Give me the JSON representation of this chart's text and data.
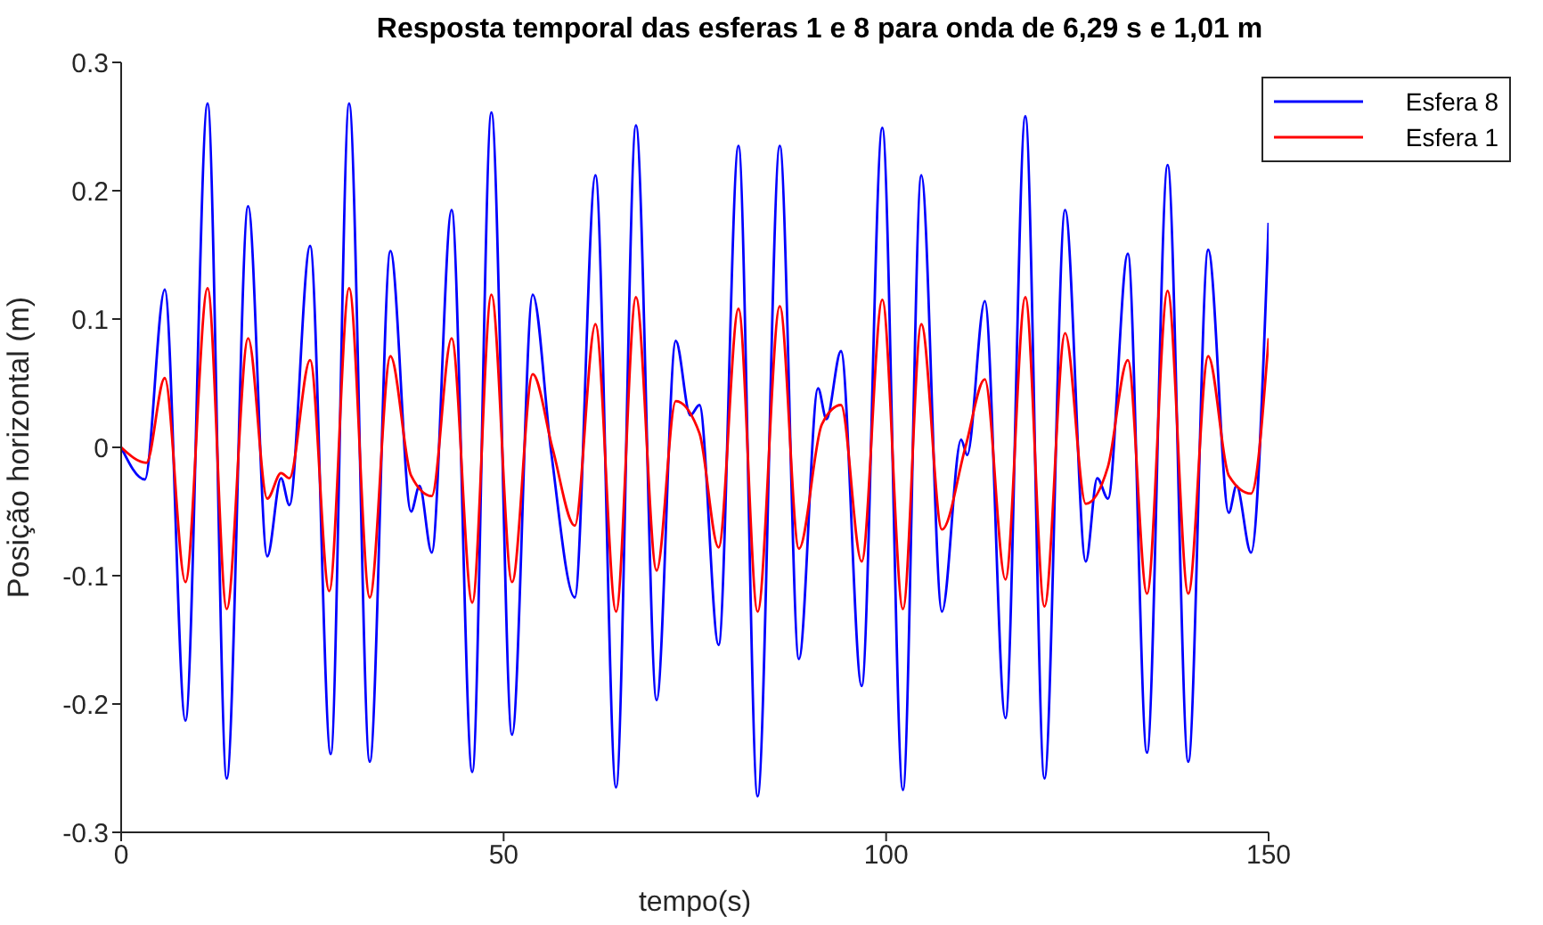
{
  "chart_data": {
    "type": "line",
    "title": "Resposta temporal das esferas 1 e 8 para onda de 6,29 s e 1,01 m",
    "xlabel": "tempo(s)",
    "ylabel": "Posição horizontal (m)",
    "xlim": [
      0,
      150
    ],
    "xticks": [
      0,
      50,
      100,
      150
    ],
    "ylim": [
      -0.3,
      0.3
    ],
    "yticks": [
      -0.3,
      -0.2,
      -0.1,
      0,
      0.1,
      0.2,
      0.3
    ],
    "grid": false,
    "legend": "top right",
    "marker": "none",
    "line_style": "solid",
    "series": [
      {
        "name": "Esfera 8",
        "color": "#0000ff",
        "x": [
          0,
          3.1,
          5.7,
          8.4,
          11.3,
          13.8,
          16.6,
          19.1,
          20.9,
          22.0,
          24.7,
          27.4,
          29.8,
          32.5,
          35.2,
          37.9,
          39.0,
          40.6,
          43.2,
          45.9,
          48.4,
          51.1,
          53.8,
          56.2,
          59.3,
          62.0,
          64.7,
          67.3,
          70.0,
          72.5,
          74.4,
          75.6,
          78.1,
          80.7,
          83.2,
          86.1,
          88.6,
          91.1,
          92.2,
          94.1,
          96.8,
          99.5,
          102.2,
          104.6,
          107.3,
          109.8,
          110.6,
          112.9,
          115.6,
          118.2,
          120.7,
          123.4,
          126.1,
          127.6,
          129.0,
          131.6,
          134.1,
          136.8,
          139.5,
          142.1,
          144.8,
          145.8,
          147.7,
          150
        ],
        "values": [
          0,
          -0.025,
          0.123,
          -0.213,
          0.268,
          -0.258,
          0.188,
          -0.085,
          -0.024,
          -0.045,
          0.157,
          -0.239,
          0.268,
          -0.245,
          0.153,
          -0.05,
          -0.03,
          -0.082,
          0.185,
          -0.253,
          0.261,
          -0.224,
          0.119,
          -0.003,
          -0.117,
          0.212,
          -0.265,
          0.251,
          -0.197,
          0.083,
          0.025,
          0.033,
          -0.154,
          0.235,
          -0.272,
          0.235,
          -0.165,
          0.046,
          0.022,
          0.075,
          -0.186,
          0.249,
          -0.267,
          0.212,
          -0.128,
          0.006,
          -0.006,
          0.114,
          -0.211,
          0.258,
          -0.258,
          0.185,
          -0.089,
          -0.024,
          -0.04,
          0.151,
          -0.238,
          0.22,
          -0.245,
          0.154,
          -0.051,
          -0.03,
          -0.082,
          0.175
        ]
      },
      {
        "name": "Esfera 1",
        "color": "#ff0000",
        "x": [
          0,
          3.3,
          5.7,
          8.4,
          11.3,
          13.8,
          16.6,
          19.1,
          20.9,
          22.0,
          24.7,
          27.2,
          29.8,
          32.5,
          35.2,
          37.9,
          40.6,
          43.2,
          45.9,
          48.4,
          51.1,
          53.8,
          56.4,
          59.3,
          62.0,
          64.7,
          67.3,
          70.0,
          72.5,
          75.6,
          78.1,
          80.7,
          83.2,
          86.1,
          88.6,
          91.6,
          94.1,
          96.8,
          99.5,
          102.2,
          104.6,
          107.3,
          110.4,
          112.9,
          115.6,
          118.2,
          120.7,
          123.4,
          126.1,
          129.0,
          131.6,
          134.1,
          136.8,
          139.5,
          142.1,
          144.8,
          147.7,
          150
        ],
        "values": [
          0,
          -0.012,
          0.054,
          -0.105,
          0.124,
          -0.126,
          0.085,
          -0.04,
          -0.02,
          -0.024,
          0.068,
          -0.112,
          0.124,
          -0.117,
          0.071,
          -0.022,
          -0.038,
          0.085,
          -0.121,
          0.119,
          -0.105,
          0.057,
          -0.001,
          -0.061,
          0.096,
          -0.128,
          0.117,
          -0.096,
          0.036,
          0.011,
          -0.078,
          0.108,
          -0.128,
          0.11,
          -0.079,
          0.018,
          0.033,
          -0.089,
          0.115,
          -0.126,
          0.096,
          -0.064,
          0.001,
          0.053,
          -0.103,
          0.117,
          -0.124,
          0.089,
          -0.044,
          -0.015,
          0.068,
          -0.114,
          0.122,
          -0.114,
          0.071,
          -0.022,
          -0.036,
          0.085
        ]
      }
    ]
  }
}
